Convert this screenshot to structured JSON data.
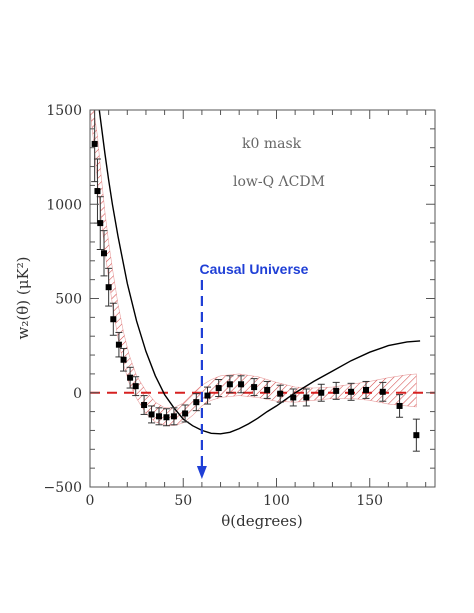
{
  "chart_data": {
    "type": "scatter",
    "title": "",
    "xlabel": "θ(degrees)",
    "ylabel": "w₂(θ)  (μK²)",
    "xlim": [
      0,
      185
    ],
    "ylim": [
      -500,
      1500
    ],
    "xticks": [
      0,
      50,
      100,
      150
    ],
    "yticks": [
      -500,
      0,
      500,
      1000,
      1500
    ],
    "grid": false,
    "legend": "none",
    "annotations": {
      "mask": "k0 mask",
      "model": "low-Q ΛCDM",
      "causal_label": "Causal Universe",
      "causal_x": 60
    },
    "colors": {
      "data": "#000000",
      "model_curve": "#000000",
      "band": "#d44a4a",
      "zero_line": "#d62020",
      "causal": "#1f3fd6"
    },
    "data_points": [
      {
        "x": 2.5,
        "y": 1320,
        "err": 200
      },
      {
        "x": 4.0,
        "y": 1070,
        "err": 170
      },
      {
        "x": 5.5,
        "y": 900,
        "err": 140
      },
      {
        "x": 7.5,
        "y": 740,
        "err": 120
      },
      {
        "x": 10.0,
        "y": 560,
        "err": 100
      },
      {
        "x": 12.5,
        "y": 390,
        "err": 85
      },
      {
        "x": 15.5,
        "y": 255,
        "err": 65
      },
      {
        "x": 18.0,
        "y": 175,
        "err": 60
      },
      {
        "x": 21.5,
        "y": 80,
        "err": 55
      },
      {
        "x": 24.5,
        "y": 35,
        "err": 50
      },
      {
        "x": 29.0,
        "y": -65,
        "err": 50
      },
      {
        "x": 33.0,
        "y": -115,
        "err": 45
      },
      {
        "x": 37.0,
        "y": -125,
        "err": 45
      },
      {
        "x": 41.0,
        "y": -130,
        "err": 45
      },
      {
        "x": 45.0,
        "y": -125,
        "err": 45
      },
      {
        "x": 51.0,
        "y": -110,
        "err": 45
      },
      {
        "x": 57.0,
        "y": -50,
        "err": 45
      },
      {
        "x": 63.0,
        "y": -15,
        "err": 45
      },
      {
        "x": 69.0,
        "y": 25,
        "err": 45
      },
      {
        "x": 75.0,
        "y": 45,
        "err": 45
      },
      {
        "x": 81.0,
        "y": 45,
        "err": 45
      },
      {
        "x": 88.0,
        "y": 30,
        "err": 45
      },
      {
        "x": 95.0,
        "y": 15,
        "err": 45
      },
      {
        "x": 102.0,
        "y": -5,
        "err": 45
      },
      {
        "x": 109.0,
        "y": -25,
        "err": 45
      },
      {
        "x": 116.0,
        "y": -25,
        "err": 45
      },
      {
        "x": 124.0,
        "y": 0,
        "err": 45
      },
      {
        "x": 132.0,
        "y": 10,
        "err": 45
      },
      {
        "x": 140.0,
        "y": 5,
        "err": 45
      },
      {
        "x": 148.0,
        "y": 15,
        "err": 45
      },
      {
        "x": 157.0,
        "y": 5,
        "err": 50
      },
      {
        "x": 166.0,
        "y": -70,
        "err": 60
      },
      {
        "x": 175.0,
        "y": -225,
        "err": 85
      }
    ],
    "model_curve": {
      "x": [
        5,
        8,
        10,
        12,
        15,
        20,
        25,
        30,
        35,
        40,
        45,
        50,
        55,
        60,
        65,
        70,
        75,
        80,
        85,
        90,
        95,
        100,
        105,
        110,
        115,
        120,
        130,
        140,
        150,
        160,
        170,
        177
      ],
      "y": [
        1500,
        1270,
        1130,
        1000,
        830,
        580,
        380,
        220,
        90,
        -10,
        -80,
        -140,
        -175,
        -200,
        -215,
        -218,
        -210,
        -190,
        -165,
        -135,
        -100,
        -70,
        -35,
        0,
        30,
        60,
        115,
        170,
        215,
        250,
        270,
        275
      ]
    },
    "band": {
      "x": [
        0,
        2,
        4,
        6,
        8,
        10,
        12,
        15,
        18,
        21,
        25,
        30,
        35,
        40,
        45,
        50,
        55,
        60,
        65,
        70,
        80,
        90,
        100,
        110,
        120,
        130,
        140,
        150,
        160,
        170,
        175
      ],
      "lower": [
        1500,
        1330,
        1120,
        930,
        750,
        610,
        470,
        290,
        150,
        50,
        -30,
        -110,
        -155,
        -170,
        -175,
        -160,
        -120,
        -70,
        -40,
        -25,
        -15,
        -25,
        -45,
        -50,
        -40,
        -30,
        -30,
        -40,
        -60,
        -70,
        -75
      ],
      "upper": [
        1500,
        1500,
        1360,
        1150,
        960,
        800,
        660,
        470,
        320,
        200,
        90,
        10,
        -50,
        -80,
        -80,
        -55,
        -5,
        40,
        70,
        90,
        100,
        85,
        55,
        30,
        25,
        30,
        45,
        60,
        80,
        95,
        100
      ]
    }
  }
}
